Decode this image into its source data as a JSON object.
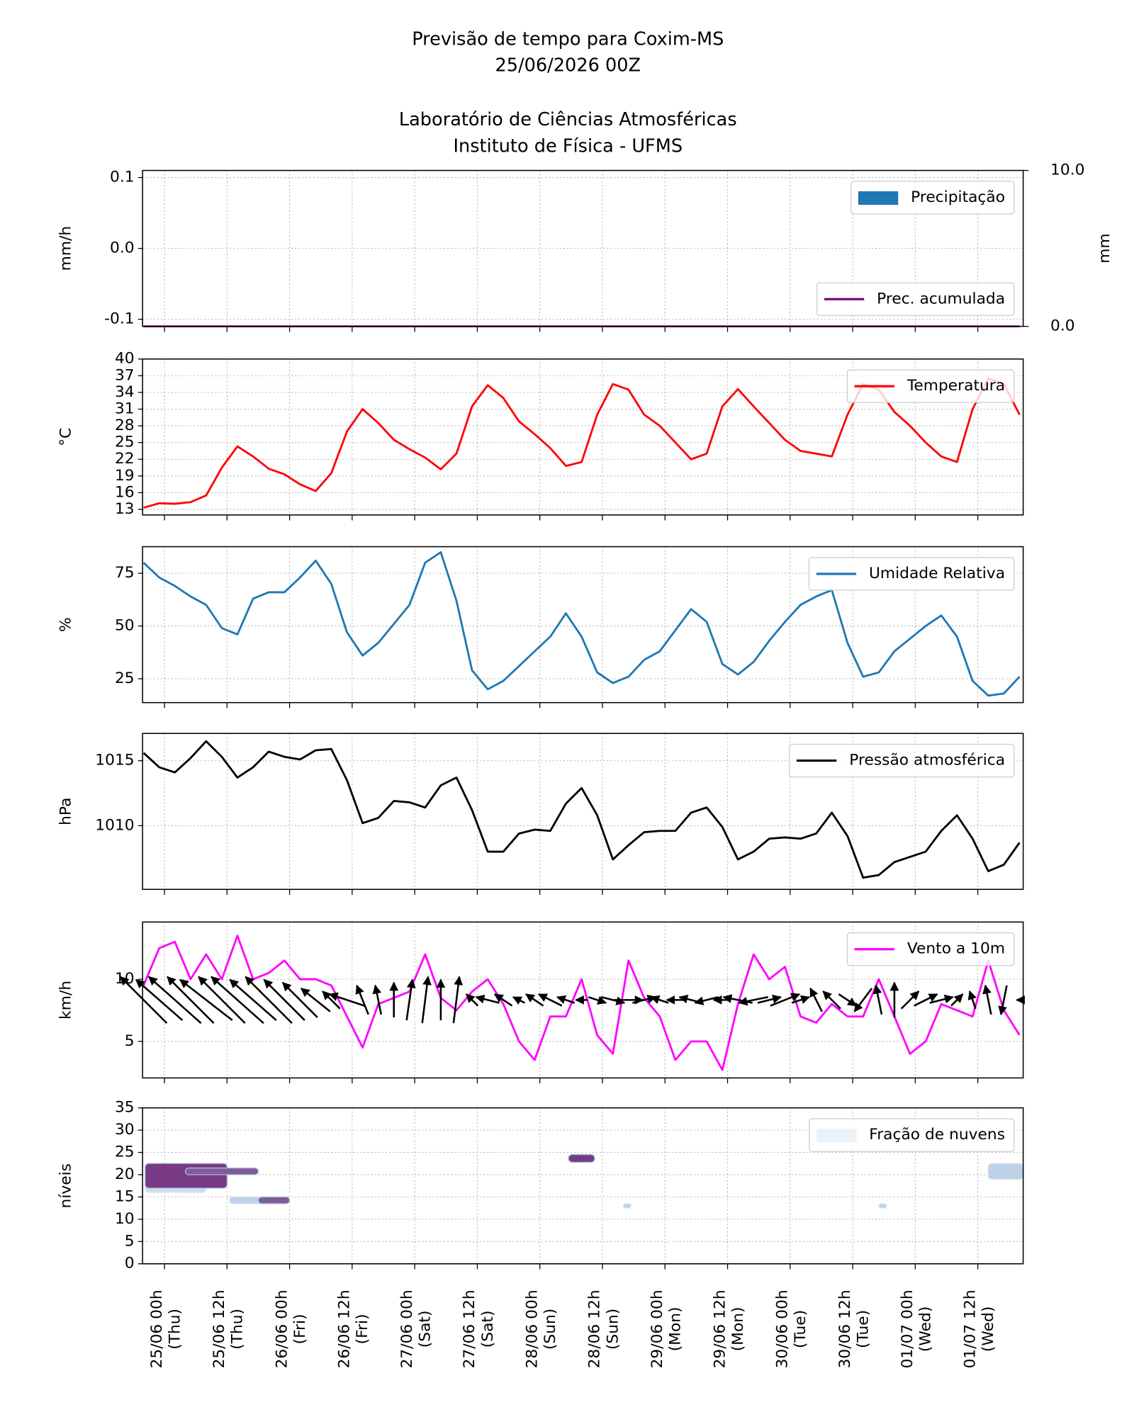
{
  "chart_data": {
    "type": "panels",
    "title": [
      "Previsão de tempo para Coxim-MS",
      "25/06/2026 00Z"
    ],
    "subtitle": [
      "Laboratório de Ciências Atmosféricas",
      "Instituto de Física - UFMS"
    ],
    "x": [
      -4,
      -1,
      2,
      5,
      8,
      11,
      14,
      17,
      20,
      23,
      26,
      29,
      32,
      35,
      38,
      41,
      44,
      47,
      50,
      53,
      56,
      59,
      62,
      65,
      68,
      71,
      74,
      77,
      80,
      83,
      86,
      89,
      92,
      95,
      98,
      101,
      104,
      107,
      110,
      113,
      116,
      119,
      122,
      125,
      128,
      131,
      134,
      137,
      140,
      143,
      146,
      149,
      152,
      155,
      158,
      161,
      164
    ],
    "xlim": [
      -4.2,
      164.7
    ],
    "xticks": [
      {
        "value": 0,
        "label": "25/06 00h",
        "day": "(Thu)"
      },
      {
        "value": 12,
        "label": "25/06 12h",
        "day": "(Thu)"
      },
      {
        "value": 24,
        "label": "26/06 00h",
        "day": "(Fri)"
      },
      {
        "value": 36,
        "label": "26/06 12h",
        "day": "(Fri)"
      },
      {
        "value": 48,
        "label": "27/06 00h",
        "day": "(Sat)"
      },
      {
        "value": 60,
        "label": "27/06 12h",
        "day": "(Sat)"
      },
      {
        "value": 72,
        "label": "28/06 00h",
        "day": "(Sun)"
      },
      {
        "value": 84,
        "label": "28/06 12h",
        "day": "(Sun)"
      },
      {
        "value": 96,
        "label": "29/06 00h",
        "day": "(Mon)"
      },
      {
        "value": 108,
        "label": "29/06 12h",
        "day": "(Mon)"
      },
      {
        "value": 120,
        "label": "30/06 00h",
        "day": "(Tue)"
      },
      {
        "value": 132,
        "label": "30/06 12h",
        "day": "(Tue)"
      },
      {
        "value": 144,
        "label": "01/07 00h",
        "day": "(Wed)"
      },
      {
        "value": 156,
        "label": "01/07 12h",
        "day": "(Wed)"
      }
    ],
    "grid": true,
    "panels": [
      {
        "type": "bar",
        "ylabel": "mm/h",
        "y2label": "mm",
        "ylim": [
          -0.11,
          0.11
        ],
        "yticks": [
          {
            "value": 0.1,
            "label": "0.1"
          },
          {
            "value": 0,
            "label": "0.0"
          },
          {
            "value": -0.1,
            "label": "-0.1"
          }
        ],
        "y2lim": [
          0,
          10
        ],
        "y2ticks": [
          {
            "value": 10,
            "label": "10.0"
          },
          {
            "value": 0,
            "label": "0.0"
          }
        ],
        "series": [
          {
            "name": "Precipitação",
            "color": "#1f77b4",
            "values": [
              0,
              0,
              0,
              0,
              0,
              0,
              0,
              0,
              0,
              0,
              0,
              0,
              0,
              0,
              0,
              0,
              0,
              0,
              0,
              0,
              0,
              0,
              0,
              0,
              0,
              0,
              0,
              0,
              0,
              0,
              0,
              0,
              0,
              0,
              0,
              0,
              0,
              0,
              0,
              0,
              0,
              0,
              0,
              0,
              0,
              0,
              0,
              0,
              0,
              0,
              0,
              0,
              0,
              0,
              0,
              0,
              0
            ]
          },
          {
            "name": "Prec. acumulada",
            "color": "#800080",
            "axis": "y2",
            "values": [
              0,
              0,
              0,
              0,
              0,
              0,
              0,
              0,
              0,
              0,
              0,
              0,
              0,
              0,
              0,
              0,
              0,
              0,
              0,
              0,
              0,
              0,
              0,
              0,
              0,
              0,
              0,
              0,
              0,
              0,
              0,
              0,
              0,
              0,
              0,
              0,
              0,
              0,
              0,
              0,
              0,
              0,
              0,
              0,
              0,
              0,
              0,
              0,
              0,
              0,
              0,
              0,
              0,
              0,
              0,
              0,
              0
            ]
          }
        ]
      },
      {
        "type": "line",
        "ylabel": "°C",
        "ylim": [
          12,
          40
        ],
        "yticks": [
          13,
          16,
          19,
          22,
          25,
          28,
          31,
          34,
          37,
          40
        ],
        "series": [
          {
            "name": "Temperatura",
            "color": "#ff0000",
            "values": [
              13.3,
              14.1,
              14.0,
              14.3,
              15.5,
              20.5,
              24.3,
              22.5,
              20.3,
              19.3,
              17.5,
              16.3,
              19.5,
              27,
              31,
              28.5,
              25.5,
              23.8,
              22.3,
              20.2,
              23,
              31.5,
              35.3,
              33,
              28.8,
              26.5,
              24,
              20.8,
              21.5,
              30,
              35.5,
              34.5,
              30,
              28,
              25,
              22,
              23,
              31.5,
              34.6,
              31.5,
              28.5,
              25.5,
              23.5,
              23,
              22.5,
              30,
              35.5,
              34.5,
              30.5,
              28,
              25,
              22.5,
              21.5,
              31,
              36.5,
              35.5,
              30
            ]
          }
        ]
      },
      {
        "type": "line",
        "ylabel": "%",
        "ylim": [
          13.7,
          87.6
        ],
        "yticks": [
          25,
          50,
          75
        ],
        "series": [
          {
            "name": "Umidade Relativa",
            "color": "#1f77b4",
            "values": [
              80,
              73,
              69,
              64,
              60,
              49,
              46,
              63,
              66,
              66,
              73,
              81,
              70,
              47,
              36,
              42,
              51,
              60,
              80,
              85,
              62,
              29,
              20,
              24,
              31,
              38,
              45,
              56,
              45,
              28,
              23,
              26,
              34,
              38,
              48,
              58,
              52,
              32,
              27,
              33,
              43,
              52,
              60,
              64,
              67,
              42,
              26,
              28,
              38,
              44,
              50,
              55,
              45,
              24,
              17,
              18,
              26
            ]
          }
        ]
      },
      {
        "type": "line",
        "ylabel": "hPa",
        "ylim": [
          1005.1,
          1017.1
        ],
        "yticks": [
          1010,
          1015
        ],
        "series": [
          {
            "name": "Pressão atmosférica",
            "color": "#000000",
            "values": [
              1015.6,
              1014.5,
              1014.1,
              1015.2,
              1016.5,
              1015.3,
              1013.7,
              1014.5,
              1015.7,
              1015.3,
              1015.1,
              1015.8,
              1015.9,
              1013.5,
              1010.2,
              1010.6,
              1011.9,
              1011.8,
              1011.4,
              1013.1,
              1013.7,
              1011.2,
              1008,
              1008,
              1009.4,
              1009.7,
              1009.6,
              1011.7,
              1012.9,
              1010.8,
              1007.4,
              1008.5,
              1009.5,
              1009.6,
              1009.6,
              1011,
              1011.4,
              1009.9,
              1007.4,
              1008,
              1009,
              1009.1,
              1009,
              1009.4,
              1011,
              1009.2,
              1006,
              1006.2,
              1007.2,
              1007.6,
              1008,
              1009.6,
              1010.8,
              1009,
              1006.5,
              1007,
              1008.7
            ]
          }
        ]
      },
      {
        "type": "line",
        "ylabel": "km/h",
        "ylim": [
          2.06,
          14.6
        ],
        "yticks": [
          5,
          10
        ],
        "series": [
          {
            "name": "Vento a 10m",
            "color": "#ff00ff",
            "values": [
              9.5,
              12.5,
              13,
              10,
              12,
              10,
              13.5,
              10,
              10.5,
              11.5,
              10,
              10,
              9.5,
              7,
              4.5,
              8,
              8.5,
              9,
              12,
              8.5,
              7.5,
              9,
              10,
              8,
              5,
              3.5,
              7,
              7,
              10,
              5.5,
              4,
              11.5,
              8.5,
              7,
              3.5,
              5,
              5,
              2.7,
              8,
              12,
              10,
              11,
              7,
              6.5,
              8,
              7,
              7,
              10,
              7,
              4,
              5,
              8,
              7.5,
              7,
              11.5,
              7.5,
              5.5
            ]
          }
        ],
        "arrow_color": "#000000",
        "u": [
          -8,
          -8,
          -9,
          -8,
          -9,
          -8,
          -9,
          -8,
          -8,
          -7,
          -6,
          -5,
          -3,
          -6,
          -2,
          -1,
          0,
          1,
          1,
          0,
          1,
          -2,
          -4,
          -3,
          -2,
          -3,
          -4,
          -3,
          -2,
          3,
          4,
          5,
          4,
          -3,
          -3,
          -4,
          -4,
          -3,
          -5,
          -5,
          4,
          5,
          3,
          -2,
          -3,
          3,
          -3,
          -1,
          0,
          3,
          4,
          4,
          2,
          -1,
          -1,
          -1,
          -1
        ],
        "v": [
          8,
          7,
          8,
          8,
          7,
          8,
          8,
          7,
          8,
          7,
          6,
          4,
          3,
          2,
          5,
          5,
          6,
          7,
          8,
          7,
          8,
          2,
          1,
          2,
          1,
          2,
          2,
          1,
          0,
          -1,
          -1,
          0,
          1,
          1,
          0,
          1,
          -1,
          0,
          1,
          -1,
          1,
          2,
          1,
          4,
          3,
          -2,
          -4,
          5,
          6,
          3,
          2,
          1,
          2,
          3,
          5,
          -5,
          0
        ]
      },
      {
        "type": "contour",
        "ylabel": "níveis",
        "ylim": [
          0,
          35
        ],
        "yticks": [
          0,
          5,
          10,
          15,
          20,
          25,
          30,
          35
        ],
        "legend_label": "Fração de nuvens",
        "legend_color": "#eaf1f9",
        "cells": [
          {
            "x": [
              -3.7,
              8
            ],
            "levels": [
              16,
              18
            ],
            "fraction": 0.2
          },
          {
            "x": [
              -3.7,
              12
            ],
            "levels": [
              17,
              22.5
            ],
            "fraction": 0.9
          },
          {
            "x": [
              4,
              18
            ],
            "levels": [
              20,
              21.5
            ],
            "fraction": 0.8
          },
          {
            "x": [
              12.5,
              24
            ],
            "levels": [
              13.5,
              15
            ],
            "fraction": 0.3
          },
          {
            "x": [
              18,
              24
            ],
            "levels": [
              13.5,
              15
            ],
            "fraction": 0.8
          },
          {
            "x": [
              77.5,
              82.5
            ],
            "levels": [
              22.8,
              24.5
            ],
            "fraction": 0.9
          },
          {
            "x": [
              88,
              89.5
            ],
            "levels": [
              12.5,
              13.5
            ],
            "fraction": 0.3
          },
          {
            "x": [
              137,
              138.5
            ],
            "levels": [
              12.5,
              13.5
            ],
            "fraction": 0.3
          },
          {
            "x": [
              158,
              164.7
            ],
            "levels": [
              19,
              22.5
            ],
            "fraction": 0.3
          }
        ]
      }
    ]
  }
}
